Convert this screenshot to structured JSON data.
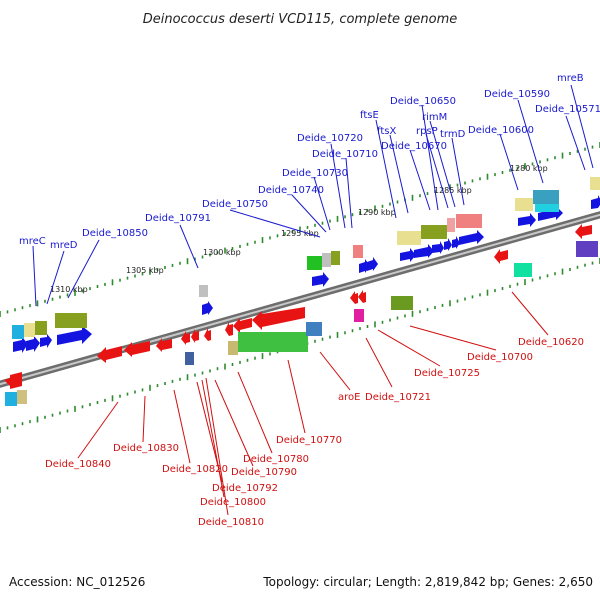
{
  "title": "Deinococcus deserti VCD115, complete genome",
  "footer": {
    "accession": "Accession: NC_012526",
    "summary": "Topology: circular; Length: 2,819,842 bp; Genes: 2,650"
  },
  "colors": {
    "forward_label": "#1a1ad0",
    "reverse_label": "#d01010",
    "forward_gene": "#1414e0",
    "reverse_gene": "#e81414",
    "backbone": "#8a8a8a",
    "tick": "#2e8b2e"
  },
  "scale_labels": [
    "1310 kbp",
    "1305 kbp",
    "1300 kbp",
    "1295 kbp",
    "1290 kbp",
    "1285 kbp",
    "1280 kbp"
  ],
  "forward_labels": [
    "mreC",
    "mreD",
    "Deide_10850",
    "Deide_10791",
    "Deide_10750",
    "Deide_10740",
    "Deide_10730",
    "Deide_10720",
    "Deide_10710",
    "ftsE",
    "ftsX",
    "Deide_10650",
    "Deide_10670",
    "rpsP",
    "rimM",
    "trmD",
    "Deide_10600",
    "Deide_10590",
    "Deide_10571",
    "mreB"
  ],
  "reverse_labels": [
    "Deide_10840",
    "Deide_10830",
    "Deide_10820",
    "Deide_10792",
    "Deide_10800",
    "Deide_10810",
    "Deide_10790",
    "Deide_10780",
    "Deide_10770",
    "aroE",
    "Deide_10721",
    "Deide_10725",
    "Deide_10700",
    "Deide_10620"
  ]
}
